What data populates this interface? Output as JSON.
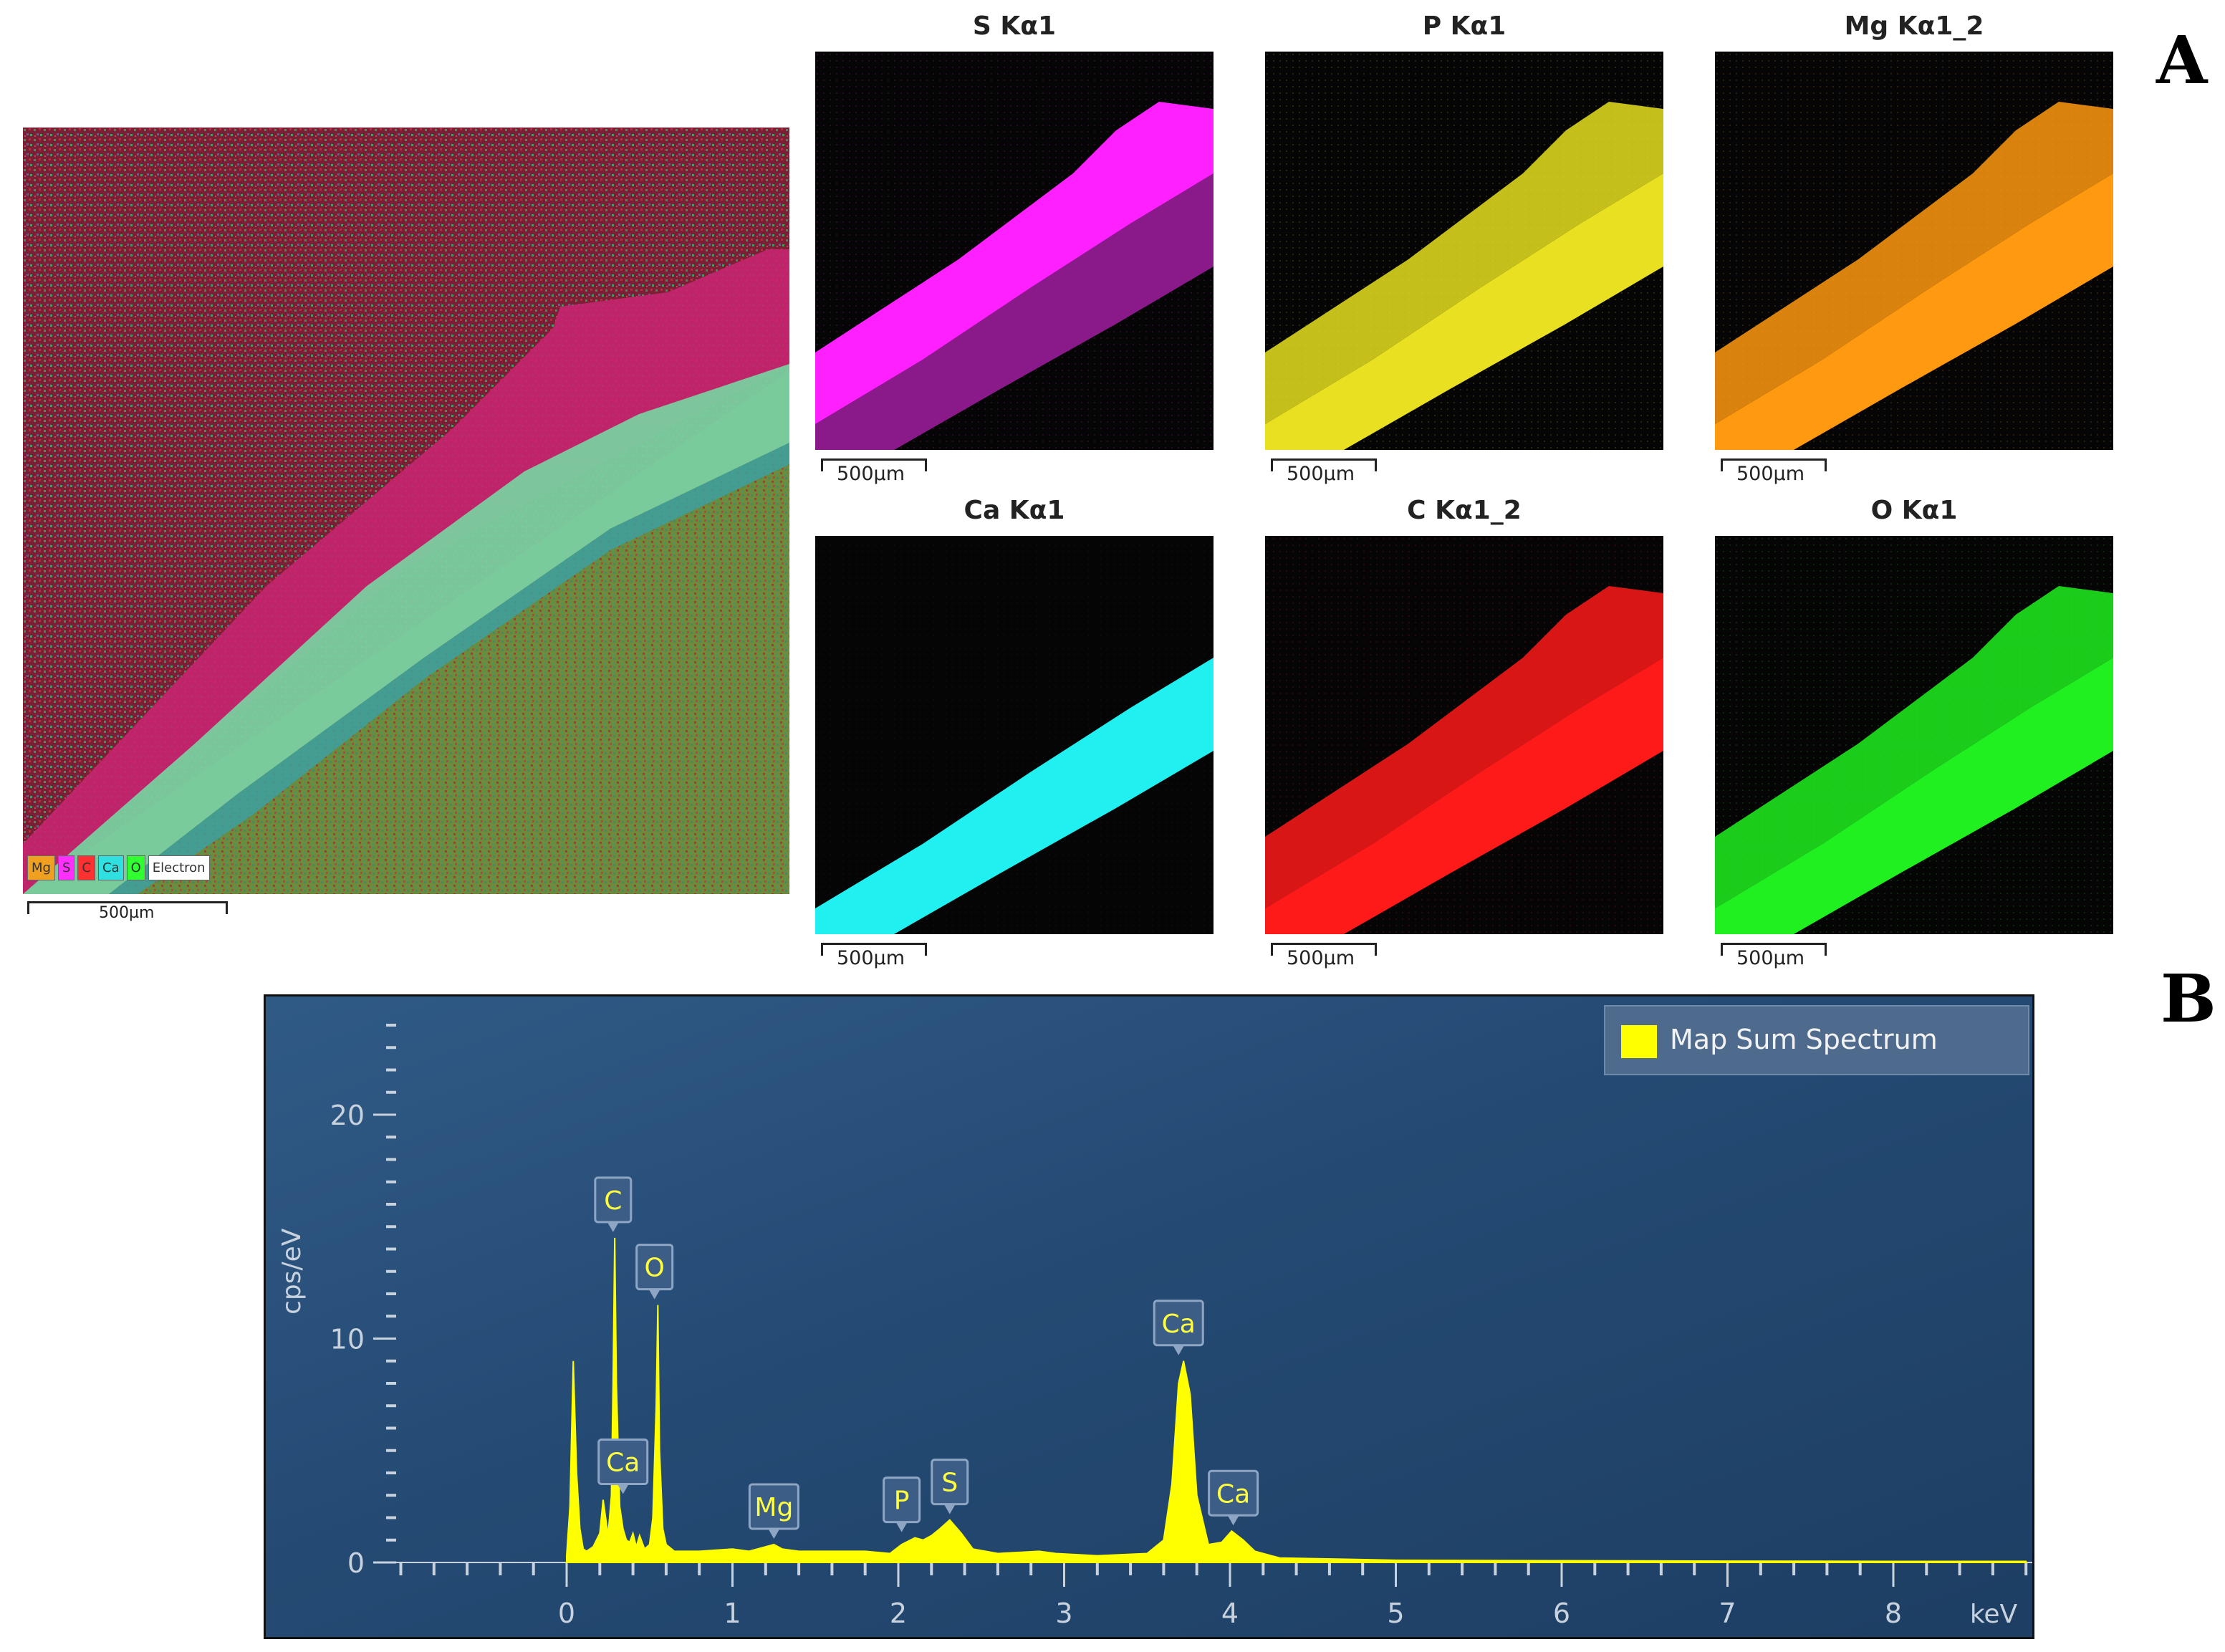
{
  "panels": {
    "a": "A",
    "b": "B"
  },
  "composite": {
    "legend": [
      "Mg",
      "S",
      "C",
      "Ca",
      "O",
      "Electron"
    ],
    "legend_colors": [
      "#f0a020",
      "#ff30ff",
      "#ff3030",
      "#30e0e0",
      "#30ff30",
      "#ffffff"
    ],
    "scale": "500µm"
  },
  "maps": [
    {
      "title": "S Kα1",
      "scale": "500µm",
      "color": "#ff20ff"
    },
    {
      "title": "P Kα1",
      "scale": "500µm",
      "color": "#e8e020"
    },
    {
      "title": "Mg Kα1_2",
      "scale": "500µm",
      "color": "#ff9a10"
    },
    {
      "title": "Ca Kα1",
      "scale": "500µm",
      "color": "#20f0f0"
    },
    {
      "title": "C Kα1_2",
      "scale": "500µm",
      "color": "#ff1a1a"
    },
    {
      "title": "O Kα1",
      "scale": "500µm",
      "color": "#20f020"
    }
  ],
  "chart_data": {
    "type": "area",
    "title": "",
    "xlabel": "keV",
    "ylabel": "cps/eV",
    "xlim": [
      -1,
      8.8
    ],
    "ylim": [
      0,
      24
    ],
    "xticks": [
      0,
      1,
      2,
      3,
      4,
      5,
      6,
      7,
      8
    ],
    "yticks": [
      0,
      10,
      20
    ],
    "grid": false,
    "legend_position": "top-right",
    "series": [
      {
        "name": "Map Sum Spectrum",
        "color": "#ffff00",
        "x": [
          0.0,
          0.02,
          0.04,
          0.06,
          0.08,
          0.1,
          0.12,
          0.16,
          0.2,
          0.22,
          0.25,
          0.27,
          0.28,
          0.29,
          0.3,
          0.32,
          0.34,
          0.36,
          0.38,
          0.4,
          0.42,
          0.44,
          0.47,
          0.5,
          0.52,
          0.54,
          0.55,
          0.56,
          0.58,
          0.6,
          0.65,
          0.8,
          1.0,
          1.1,
          1.2,
          1.25,
          1.3,
          1.4,
          1.6,
          1.8,
          1.95,
          2.02,
          2.1,
          2.15,
          2.2,
          2.25,
          2.31,
          2.38,
          2.45,
          2.6,
          2.85,
          2.95,
          3.2,
          3.5,
          3.6,
          3.65,
          3.69,
          3.72,
          3.76,
          3.8,
          3.87,
          3.95,
          4.01,
          4.08,
          4.15,
          4.3,
          5.0,
          6.0,
          7.0,
          8.0,
          8.8
        ],
        "y": [
          0.3,
          2.5,
          9.0,
          4.0,
          1.5,
          0.6,
          0.5,
          0.7,
          1.3,
          2.8,
          1.2,
          3.0,
          8.0,
          14.5,
          8.0,
          2.5,
          1.5,
          1.0,
          0.9,
          1.3,
          0.7,
          1.2,
          0.6,
          0.8,
          2.0,
          7.0,
          11.5,
          5.0,
          1.5,
          0.8,
          0.5,
          0.5,
          0.6,
          0.5,
          0.7,
          0.8,
          0.6,
          0.5,
          0.5,
          0.5,
          0.4,
          0.8,
          1.1,
          1.0,
          1.2,
          1.5,
          1.9,
          1.3,
          0.6,
          0.4,
          0.5,
          0.4,
          0.3,
          0.4,
          1.0,
          3.5,
          8.0,
          9.0,
          7.5,
          3.0,
          0.8,
          0.9,
          1.4,
          1.0,
          0.5,
          0.2,
          0.1,
          0.08,
          0.06,
          0.05,
          0.05
        ]
      }
    ],
    "annotations": [
      {
        "label": "C",
        "x": 0.28,
        "y": 14.5
      },
      {
        "label": "O",
        "x": 0.53,
        "y": 11.5
      },
      {
        "label": "Ca",
        "x": 0.34,
        "y": 2.8
      },
      {
        "label": "Mg",
        "x": 1.25,
        "y": 0.8
      },
      {
        "label": "P",
        "x": 2.02,
        "y": 1.1
      },
      {
        "label": "S",
        "x": 2.31,
        "y": 1.9
      },
      {
        "label": "Ca",
        "x": 3.69,
        "y": 9.0
      },
      {
        "label": "Ca",
        "x": 4.02,
        "y": 1.4
      }
    ]
  }
}
